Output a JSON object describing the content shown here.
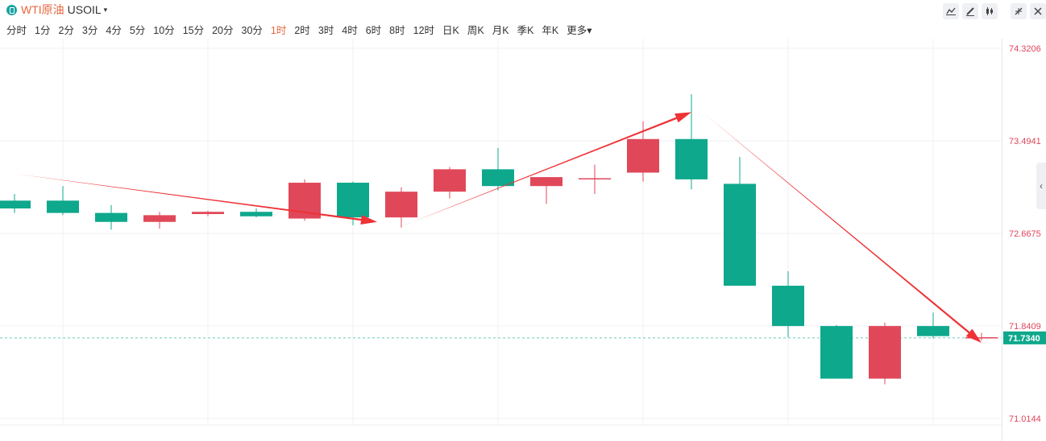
{
  "header": {
    "instrument_name": "WTI原油",
    "instrument_code": "USOIL",
    "caret": "▾",
    "periods": [
      "分时",
      "1分",
      "2分",
      "3分",
      "4分",
      "5分",
      "10分",
      "15分",
      "20分",
      "30分",
      "1时",
      "2时",
      "3时",
      "4时",
      "6时",
      "8时",
      "12时",
      "日K",
      "周K",
      "月K",
      "季K",
      "年K",
      "更多▾"
    ],
    "active_period": "1时",
    "tools": [
      "indicator-icon",
      "draw-icon",
      "candle-type-icon",
      "collapse-icon",
      "close-icon"
    ]
  },
  "colors": {
    "up": "#e0485a",
    "down": "#0ea88c",
    "accent": "#e8663d",
    "arrow": "#ee3236",
    "last": "#0ea88c"
  },
  "chart_data": {
    "type": "candlestick",
    "y_tick_labels": [
      "74.3206",
      "73.4941",
      "72.6675",
      "71.8409",
      "71.0144"
    ],
    "ylim": [
      71.0144,
      74.3206
    ],
    "last_price": "71.7340",
    "candles": [
      {
        "o": 72.96,
        "h": 73.02,
        "l": 72.85,
        "c": 72.89
      },
      {
        "o": 72.96,
        "h": 73.09,
        "l": 72.83,
        "c": 72.85
      },
      {
        "o": 72.85,
        "h": 72.92,
        "l": 72.7,
        "c": 72.77
      },
      {
        "o": 72.77,
        "h": 72.86,
        "l": 72.71,
        "c": 72.83
      },
      {
        "o": 72.84,
        "h": 72.87,
        "l": 72.82,
        "c": 72.86
      },
      {
        "o": 72.86,
        "h": 72.89,
        "l": 72.81,
        "c": 72.82
      },
      {
        "o": 72.8,
        "h": 73.15,
        "l": 72.78,
        "c": 73.12
      },
      {
        "o": 73.12,
        "h": 73.13,
        "l": 72.74,
        "c": 72.81
      },
      {
        "o": 72.81,
        "h": 73.08,
        "l": 72.72,
        "c": 73.04
      },
      {
        "o": 73.04,
        "h": 73.26,
        "l": 72.98,
        "c": 73.24
      },
      {
        "o": 73.24,
        "h": 73.43,
        "l": 73.05,
        "c": 73.09
      },
      {
        "o": 73.09,
        "h": 73.17,
        "l": 72.93,
        "c": 73.17
      },
      {
        "o": 73.15,
        "h": 73.28,
        "l": 73.02,
        "c": 73.16
      },
      {
        "o": 73.21,
        "h": 73.67,
        "l": 73.13,
        "c": 73.51
      },
      {
        "o": 73.51,
        "h": 73.91,
        "l": 73.06,
        "c": 73.15
      },
      {
        "o": 73.11,
        "h": 73.35,
        "l": 72.2,
        "c": 72.2
      },
      {
        "o": 72.2,
        "h": 72.33,
        "l": 71.74,
        "c": 71.84
      },
      {
        "o": 71.84,
        "h": 71.85,
        "l": 71.37,
        "c": 71.37
      },
      {
        "o": 71.37,
        "h": 71.87,
        "l": 71.32,
        "c": 71.84
      },
      {
        "o": 71.84,
        "h": 71.96,
        "l": 71.73,
        "c": 71.75
      },
      {
        "o": 71.74,
        "h": 71.78,
        "l": 71.71,
        "c": 71.74
      }
    ],
    "trend_arrows": [
      {
        "from": [
          0,
          73.2
        ],
        "to": [
          7.5,
          72.77
        ]
      },
      {
        "from": [
          8,
          72.73
        ],
        "to": [
          14,
          73.75
        ]
      },
      {
        "from": [
          14.2,
          73.76
        ],
        "to": [
          20,
          71.69
        ]
      }
    ]
  }
}
